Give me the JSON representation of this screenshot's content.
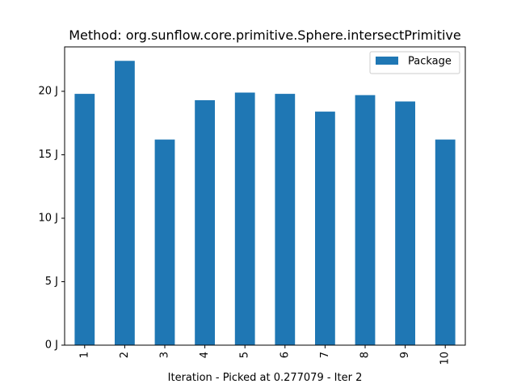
{
  "chart_data": {
    "type": "bar",
    "title": "Method: org.sunflow.core.primitive.Sphere.intersectPrimitive",
    "xlabel": "Iteration - Picked at 0.277079 - Iter 2",
    "ylabel": "",
    "categories": [
      "1",
      "2",
      "3",
      "4",
      "5",
      "6",
      "7",
      "8",
      "9",
      "10"
    ],
    "series": [
      {
        "name": "Package",
        "values": [
          19.8,
          22.4,
          16.2,
          19.3,
          19.9,
          19.8,
          18.4,
          19.7,
          19.2,
          16.2
        ]
      }
    ],
    "ylim": [
      0,
      23.5
    ],
    "yticks": [
      0,
      5,
      10,
      15,
      20
    ],
    "ytick_labels": [
      "0 J",
      "5 J",
      "10 J",
      "15 J",
      "20 J"
    ],
    "legend": "top-right",
    "grid": false,
    "bar_color": "#1f77b4"
  }
}
